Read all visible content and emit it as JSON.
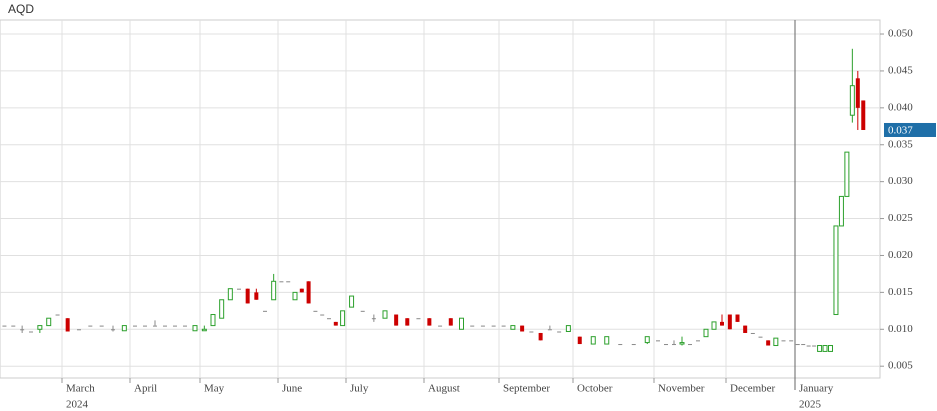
{
  "chart_data": {
    "type": "candlestick",
    "title": "AQD",
    "up_color": "#2ca02c",
    "down_color": "#cc0000",
    "flat_color": "#888888",
    "grid": true,
    "categories": [
      null,
      "March",
      "April",
      "May",
      "June",
      "July",
      "August",
      "September",
      "October",
      "November",
      "December",
      "January"
    ],
    "year_labels": [
      "2024",
      "2025"
    ],
    "ylim": [
      0.0034,
      0.0519
    ],
    "yticks": [
      0.005,
      {
        "value": 0.01,
        "label": "0.010"
      },
      0.015,
      {
        "value": 0.02,
        "label": "0.020"
      },
      0.025,
      {
        "value": 0.03,
        "label": "0.030"
      },
      0.035,
      {
        "value": 0.04,
        "label": "0.040"
      },
      0.045,
      {
        "value": 0.05,
        "label": "0.050"
      }
    ],
    "last_price": 0.037,
    "candles": [
      [
        {
          "open": 0.0105,
          "high": 0.0105,
          "low": 0.0105,
          "close": 0.0105
        },
        {
          "open": 0.0105,
          "high": 0.0105,
          "low": 0.0105,
          "close": 0.0105
        },
        {
          "open": 0.01,
          "high": 0.0105,
          "low": 0.0095,
          "close": 0.01
        },
        {
          "open": 0.0097,
          "high": 0.0097,
          "low": 0.0097,
          "close": 0.0097
        },
        {
          "open": 0.01,
          "high": 0.0105,
          "low": 0.0095,
          "close": 0.0105
        },
        {
          "open": 0.0105,
          "high": 0.0115,
          "low": 0.0105,
          "close": 0.0115
        },
        {
          "open": 0.012,
          "high": 0.012,
          "low": 0.012,
          "close": 0.012
        }
      ],
      [
        {
          "open": 0.0115,
          "high": 0.0115,
          "low": 0.0097,
          "close": 0.0097
        },
        {
          "open": 0.01,
          "high": 0.01,
          "low": 0.01,
          "close": 0.01
        },
        {
          "open": 0.0105,
          "high": 0.0105,
          "low": 0.0105,
          "close": 0.0105
        },
        {
          "open": 0.0105,
          "high": 0.0105,
          "low": 0.0105,
          "close": 0.0105
        },
        {
          "open": 0.01,
          "high": 0.0105,
          "low": 0.0097,
          "close": 0.01
        },
        {
          "open": 0.0098,
          "high": 0.0105,
          "low": 0.0098,
          "close": 0.0105
        }
      ],
      [
        {
          "open": 0.0105,
          "high": 0.0105,
          "low": 0.0105,
          "close": 0.0105
        },
        {
          "open": 0.0105,
          "high": 0.0105,
          "low": 0.0105,
          "close": 0.0105
        },
        {
          "open": 0.0105,
          "high": 0.0112,
          "low": 0.0105,
          "close": 0.0105
        },
        {
          "open": 0.0105,
          "high": 0.0105,
          "low": 0.0105,
          "close": 0.0105
        },
        {
          "open": 0.0105,
          "high": 0.0105,
          "low": 0.0105,
          "close": 0.0105
        },
        {
          "open": 0.0105,
          "high": 0.0105,
          "low": 0.0105,
          "close": 0.0105
        },
        {
          "open": 0.0098,
          "high": 0.0105,
          "low": 0.0098,
          "close": 0.0105
        }
      ],
      [
        {
          "open": 0.0098,
          "high": 0.0105,
          "low": 0.0098,
          "close": 0.01
        },
        {
          "open": 0.0105,
          "high": 0.012,
          "low": 0.0105,
          "close": 0.012
        },
        {
          "open": 0.0115,
          "high": 0.014,
          "low": 0.0115,
          "close": 0.014
        },
        {
          "open": 0.014,
          "high": 0.0155,
          "low": 0.014,
          "close": 0.0155
        },
        {
          "open": 0.0155,
          "high": 0.0155,
          "low": 0.0155,
          "close": 0.0155
        },
        {
          "open": 0.0155,
          "high": 0.0155,
          "low": 0.0135,
          "close": 0.0135
        },
        {
          "open": 0.015,
          "high": 0.0155,
          "low": 0.014,
          "close": 0.014
        },
        {
          "open": 0.0125,
          "high": 0.0125,
          "low": 0.0125,
          "close": 0.0125
        },
        {
          "open": 0.014,
          "high": 0.0175,
          "low": 0.014,
          "close": 0.0165
        }
      ],
      [
        {
          "open": 0.0165,
          "high": 0.0165,
          "low": 0.0165,
          "close": 0.0165
        },
        {
          "open": 0.0165,
          "high": 0.0165,
          "low": 0.0165,
          "close": 0.0165
        },
        {
          "open": 0.014,
          "high": 0.015,
          "low": 0.014,
          "close": 0.015
        },
        {
          "open": 0.0155,
          "high": 0.0155,
          "low": 0.015,
          "close": 0.015
        },
        {
          "open": 0.0165,
          "high": 0.0165,
          "low": 0.0135,
          "close": 0.0135
        },
        {
          "open": 0.0125,
          "high": 0.0125,
          "low": 0.0125,
          "close": 0.0125
        },
        {
          "open": 0.012,
          "high": 0.012,
          "low": 0.012,
          "close": 0.012
        },
        {
          "open": 0.0115,
          "high": 0.0115,
          "low": 0.0115,
          "close": 0.0115
        },
        {
          "open": 0.011,
          "high": 0.011,
          "low": 0.0105,
          "close": 0.0105
        },
        {
          "open": 0.0105,
          "high": 0.0125,
          "low": 0.0105,
          "close": 0.0125
        }
      ],
      [
        {
          "open": 0.013,
          "high": 0.0145,
          "low": 0.013,
          "close": 0.0145
        },
        {
          "open": 0.0125,
          "high": 0.0125,
          "low": 0.0125,
          "close": 0.0125
        },
        {
          "open": 0.0115,
          "high": 0.012,
          "low": 0.011,
          "close": 0.0115
        },
        {
          "open": 0.0115,
          "high": 0.0125,
          "low": 0.0115,
          "close": 0.0125
        },
        {
          "open": 0.012,
          "high": 0.012,
          "low": 0.0105,
          "close": 0.0105
        },
        {
          "open": 0.0115,
          "high": 0.0115,
          "low": 0.0105,
          "close": 0.0105
        },
        {
          "open": 0.0115,
          "high": 0.0115,
          "low": 0.0115,
          "close": 0.0115
        }
      ],
      [
        {
          "open": 0.0115,
          "high": 0.0115,
          "low": 0.0105,
          "close": 0.0105
        },
        {
          "open": 0.0105,
          "high": 0.0105,
          "low": 0.0105,
          "close": 0.0105
        },
        {
          "open": 0.0115,
          "high": 0.0115,
          "low": 0.0105,
          "close": 0.0105
        },
        {
          "open": 0.01,
          "high": 0.0115,
          "low": 0.01,
          "close": 0.0115
        },
        {
          "open": 0.0105,
          "high": 0.0105,
          "low": 0.0105,
          "close": 0.0105
        },
        {
          "open": 0.0105,
          "high": 0.0105,
          "low": 0.0105,
          "close": 0.0105
        },
        {
          "open": 0.0105,
          "high": 0.0105,
          "low": 0.0105,
          "close": 0.0105
        }
      ],
      [
        {
          "open": 0.0105,
          "high": 0.0105,
          "low": 0.0105,
          "close": 0.0105
        },
        {
          "open": 0.01,
          "high": 0.0105,
          "low": 0.01,
          "close": 0.0105
        },
        {
          "open": 0.0105,
          "high": 0.0105,
          "low": 0.0097,
          "close": 0.0097
        },
        {
          "open": 0.0097,
          "high": 0.0097,
          "low": 0.0097,
          "close": 0.0097
        },
        {
          "open": 0.0095,
          "high": 0.0095,
          "low": 0.0085,
          "close": 0.0085
        },
        {
          "open": 0.01,
          "high": 0.0105,
          "low": 0.01,
          "close": 0.01
        },
        {
          "open": 0.0097,
          "high": 0.0097,
          "low": 0.0097,
          "close": 0.0097
        },
        {
          "open": 0.0097,
          "high": 0.0105,
          "low": 0.0097,
          "close": 0.0105
        }
      ],
      [
        {
          "open": 0.009,
          "high": 0.009,
          "low": 0.008,
          "close": 0.008
        },
        {
          "open": 0.008,
          "high": 0.009,
          "low": 0.008,
          "close": 0.009
        },
        {
          "open": 0.008,
          "high": 0.009,
          "low": 0.008,
          "close": 0.009
        },
        {
          "open": 0.008,
          "high": 0.008,
          "low": 0.008,
          "close": 0.008
        },
        {
          "open": 0.008,
          "high": 0.008,
          "low": 0.008,
          "close": 0.008
        },
        {
          "open": 0.0082,
          "high": 0.009,
          "low": 0.008,
          "close": 0.009
        }
      ],
      [
        {
          "open": 0.0085,
          "high": 0.0085,
          "low": 0.0085,
          "close": 0.0085
        },
        {
          "open": 0.008,
          "high": 0.008,
          "low": 0.008,
          "close": 0.008
        },
        {
          "open": 0.008,
          "high": 0.0085,
          "low": 0.008,
          "close": 0.008
        },
        {
          "open": 0.008,
          "high": 0.009,
          "low": 0.0078,
          "close": 0.0082
        },
        {
          "open": 0.008,
          "high": 0.008,
          "low": 0.008,
          "close": 0.008
        },
        {
          "open": 0.0085,
          "high": 0.0085,
          "low": 0.0085,
          "close": 0.0085
        },
        {
          "open": 0.009,
          "high": 0.01,
          "low": 0.009,
          "close": 0.01
        },
        {
          "open": 0.01,
          "high": 0.011,
          "low": 0.01,
          "close": 0.011
        },
        {
          "open": 0.011,
          "high": 0.012,
          "low": 0.0105,
          "close": 0.0105
        }
      ],
      [
        {
          "open": 0.012,
          "high": 0.012,
          "low": 0.01,
          "close": 0.01
        },
        {
          "open": 0.012,
          "high": 0.012,
          "low": 0.011,
          "close": 0.011
        },
        {
          "open": 0.0105,
          "high": 0.0105,
          "low": 0.0095,
          "close": 0.0095
        },
        {
          "open": 0.0095,
          "high": 0.0095,
          "low": 0.0095,
          "close": 0.0095
        },
        {
          "open": 0.009,
          "high": 0.009,
          "low": 0.009,
          "close": 0.009
        },
        {
          "open": 0.0085,
          "high": 0.0085,
          "low": 0.0078,
          "close": 0.0078
        },
        {
          "open": 0.0078,
          "high": 0.0088,
          "low": 0.0078,
          "close": 0.0088
        },
        {
          "open": 0.0085,
          "high": 0.0085,
          "low": 0.0085,
          "close": 0.0085
        },
        {
          "open": 0.0085,
          "high": 0.0085,
          "low": 0.0085,
          "close": 0.0085
        }
      ],
      [
        {
          "open": 0.008,
          "high": 0.008,
          "low": 0.008,
          "close": 0.008
        },
        {
          "open": 0.008,
          "high": 0.008,
          "low": 0.008,
          "close": 0.008
        },
        {
          "open": 0.0078,
          "high": 0.0078,
          "low": 0.0078,
          "close": 0.0078
        },
        {
          "open": 0.0078,
          "high": 0.0078,
          "low": 0.0078,
          "close": 0.0078
        },
        {
          "open": 0.007,
          "high": 0.0078,
          "low": 0.007,
          "close": 0.0078
        },
        {
          "open": 0.007,
          "high": 0.0078,
          "low": 0.007,
          "close": 0.0078
        },
        {
          "open": 0.007,
          "high": 0.0078,
          "low": 0.007,
          "close": 0.0078
        },
        {
          "open": 0.012,
          "high": 0.024,
          "low": 0.012,
          "close": 0.024
        },
        {
          "open": 0.024,
          "high": 0.028,
          "low": 0.024,
          "close": 0.028
        },
        {
          "open": 0.028,
          "high": 0.034,
          "low": 0.028,
          "close": 0.034
        },
        {
          "open": 0.039,
          "high": 0.048,
          "low": 0.038,
          "close": 0.043
        },
        {
          "open": 0.044,
          "high": 0.045,
          "low": 0.037,
          "close": 0.04
        },
        {
          "open": 0.041,
          "high": 0.041,
          "low": 0.037,
          "close": 0.037
        }
      ]
    ]
  }
}
